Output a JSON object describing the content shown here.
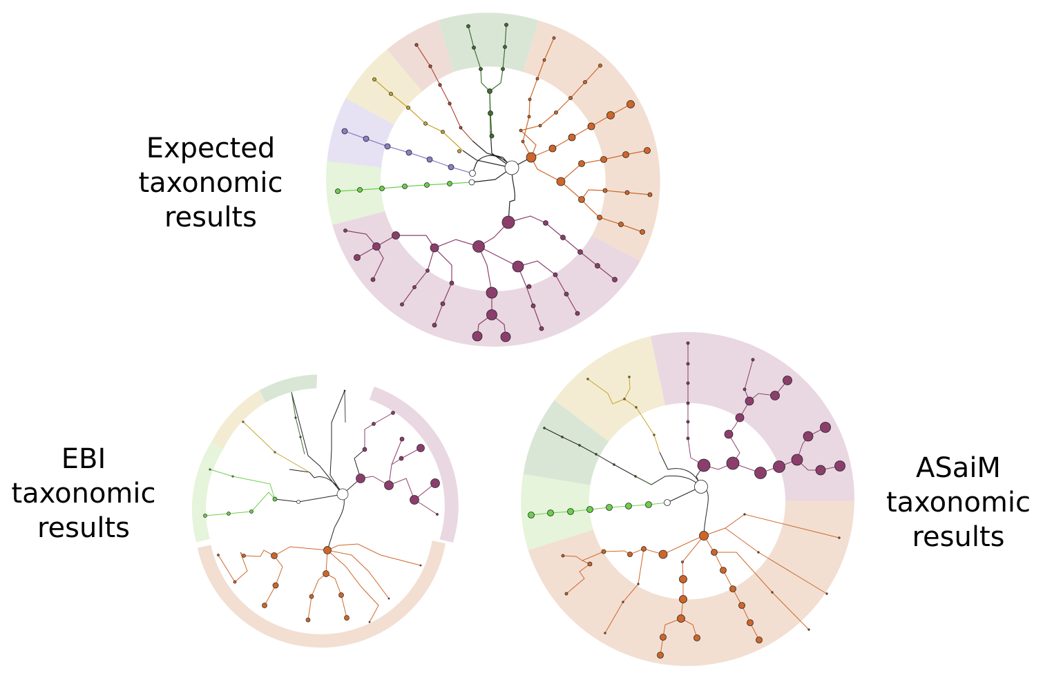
{
  "labels": {
    "expected": {
      "line1": "Expected",
      "line2": "taxonomic",
      "line3": "results"
    },
    "ebi": {
      "line1": "EBI",
      "line2": "taxonomic",
      "line3": "results"
    },
    "asaim": {
      "line1": "ASaiM",
      "line2": "taxonomic",
      "line3": "results"
    }
  },
  "colors": {
    "purple_clade": "#8b3e6c",
    "purple_band": "#e9d8e1",
    "orange_clade": "#cf6629",
    "orange_band": "#f2dfd2",
    "green_clade": "#6ccf4a",
    "green_band": "#e5f4da",
    "darkgreen_clade": "#3f6e2e",
    "darkgreen_band": "#d9e6d6",
    "yellow_clade": "#c9a32a",
    "yellow_band": "#f3ecd2",
    "lavender_clade": "#8e7ec4",
    "lavender_band": "#e6e2f3",
    "red_clade": "#b24d3a",
    "red_band": "#efdcd6"
  },
  "trees": [
    {
      "name": "expected",
      "bands": [
        "darkgreen",
        "orange",
        "purple",
        "green",
        "lavender",
        "yellow",
        "red"
      ]
    },
    {
      "name": "ebi",
      "bands": [
        "darkgreen",
        "purple",
        "orange",
        "green",
        "yellow"
      ]
    },
    {
      "name": "asaim",
      "bands": [
        "purple",
        "orange",
        "green",
        "darkgreen",
        "yellow"
      ]
    }
  ]
}
